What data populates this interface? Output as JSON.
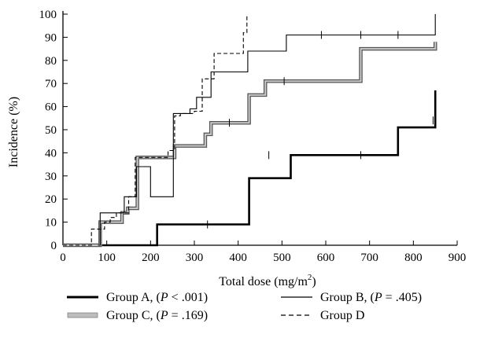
{
  "chart_data": {
    "type": "line",
    "step": true,
    "xlabel_text": "Total dose (mg/m",
    "xlabel_sup": "2",
    "xlabel_tail": ")",
    "ylabel": "Incidence (%)",
    "xlim": [
      0,
      900
    ],
    "ylim": [
      0,
      100
    ],
    "xticks": [
      0,
      100,
      200,
      300,
      400,
      500,
      600,
      700,
      800,
      900
    ],
    "yticks": [
      0,
      10,
      20,
      30,
      40,
      50,
      60,
      70,
      80,
      90,
      100
    ],
    "grid": false,
    "legend_position": "bottom",
    "series": [
      {
        "name": "Group A, (P < .001)",
        "legend_prefix": "Group A, (",
        "legend_italic": "P",
        "legend_suffix": " < .001)",
        "style": "thick",
        "color": "#000000",
        "points": [
          [
            90,
            0
          ],
          [
            215,
            0
          ],
          [
            215,
            9
          ],
          [
            425,
            9
          ],
          [
            425,
            29
          ],
          [
            520,
            29
          ],
          [
            520,
            39
          ],
          [
            765,
            39
          ],
          [
            765,
            51
          ],
          [
            850,
            51
          ],
          [
            850,
            67
          ]
        ],
        "censor": [
          [
            330,
            9
          ],
          [
            470,
            39
          ],
          [
            680,
            39
          ],
          [
            845,
            54
          ]
        ]
      },
      {
        "name": "Group B, (P = .405)",
        "legend_prefix": "Group B, (",
        "legend_italic": "P",
        "legend_suffix": " = .405)",
        "style": "thin",
        "color": "#000000",
        "points": [
          [
            80,
            0
          ],
          [
            85,
            0
          ],
          [
            85,
            14
          ],
          [
            140,
            14
          ],
          [
            140,
            21
          ],
          [
            168,
            21
          ],
          [
            168,
            34
          ],
          [
            200,
            34
          ],
          [
            200,
            21
          ],
          [
            252,
            21
          ],
          [
            252,
            57
          ],
          [
            290,
            57
          ],
          [
            290,
            59
          ],
          [
            305,
            59
          ],
          [
            305,
            64
          ],
          [
            338,
            64
          ],
          [
            338,
            75
          ],
          [
            422,
            75
          ],
          [
            422,
            84
          ],
          [
            510,
            84
          ],
          [
            510,
            91
          ],
          [
            850,
            91
          ],
          [
            850,
            100
          ]
        ],
        "censor": [
          [
            590,
            91
          ],
          [
            680,
            91
          ],
          [
            765,
            91
          ]
        ]
      },
      {
        "name": "Group C, (P = .169)",
        "legend_prefix": "Group C, (",
        "legend_italic": "P",
        "legend_suffix": " = .169)",
        "style": "double",
        "color": "#000000",
        "points": [
          [
            0,
            0
          ],
          [
            85,
            0
          ],
          [
            85,
            10
          ],
          [
            135,
            10
          ],
          [
            135,
            14
          ],
          [
            148,
            14
          ],
          [
            148,
            16
          ],
          [
            170,
            16
          ],
          [
            170,
            38
          ],
          [
            255,
            38
          ],
          [
            255,
            43
          ],
          [
            325,
            43
          ],
          [
            325,
            48
          ],
          [
            338,
            48
          ],
          [
            338,
            53
          ],
          [
            425,
            53
          ],
          [
            425,
            65
          ],
          [
            462,
            65
          ],
          [
            462,
            71
          ],
          [
            680,
            71
          ],
          [
            680,
            85
          ],
          [
            850,
            85
          ],
          [
            850,
            88
          ]
        ],
        "censor": [
          [
            380,
            53
          ],
          [
            505,
            71
          ]
        ]
      },
      {
        "name": "Group D",
        "legend_prefix": "Group D",
        "legend_italic": "",
        "legend_suffix": "",
        "style": "dashed",
        "color": "#000000",
        "points": [
          [
            0,
            0
          ],
          [
            65,
            0
          ],
          [
            65,
            7
          ],
          [
            95,
            7
          ],
          [
            95,
            10
          ],
          [
            108,
            10
          ],
          [
            108,
            12
          ],
          [
            122,
            12
          ],
          [
            122,
            14
          ],
          [
            150,
            14
          ],
          [
            150,
            21
          ],
          [
            165,
            21
          ],
          [
            165,
            38
          ],
          [
            240,
            38
          ],
          [
            240,
            41
          ],
          [
            255,
            41
          ],
          [
            255,
            56
          ],
          [
            268,
            56
          ],
          [
            268,
            57
          ],
          [
            300,
            57
          ],
          [
            300,
            58
          ],
          [
            318,
            58
          ],
          [
            318,
            72
          ],
          [
            345,
            72
          ],
          [
            345,
            83
          ],
          [
            412,
            83
          ],
          [
            412,
            92
          ],
          [
            420,
            92
          ],
          [
            420,
            100
          ]
        ],
        "censor": []
      }
    ]
  }
}
